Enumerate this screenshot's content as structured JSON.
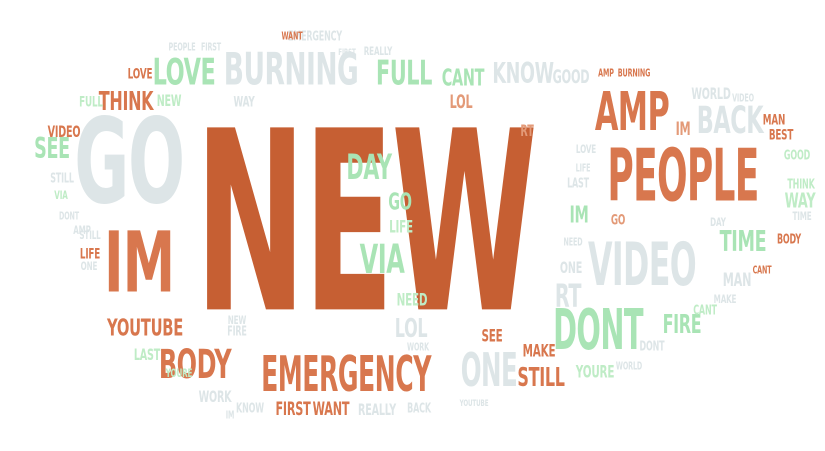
{
  "palette": {
    "orange_dark": "#c65f33",
    "orange": "#d8774e",
    "orange_light": "#e39a78",
    "mint": "#bfecc6",
    "mint_strong": "#a9e4b5",
    "gray": "#dde5e7",
    "gray_light": "#e8edef"
  },
  "words": [
    {
      "text": "NEW"
    },
    {
      "text": "GO"
    },
    {
      "text": "IM"
    },
    {
      "text": "PEOPLE"
    },
    {
      "text": "EMERGENCY"
    },
    {
      "text": "BURNING"
    },
    {
      "text": "AMP"
    },
    {
      "text": "VIDEO"
    },
    {
      "text": "BODY"
    },
    {
      "text": "LOVE"
    },
    {
      "text": "FULL"
    },
    {
      "text": "DONT"
    },
    {
      "text": "VIA"
    },
    {
      "text": "DAY"
    },
    {
      "text": "ONE"
    },
    {
      "text": "BACK"
    },
    {
      "text": "TIME"
    },
    {
      "text": "THINK"
    },
    {
      "text": "SEE"
    },
    {
      "text": "YOUTUBE"
    },
    {
      "text": "CANT"
    },
    {
      "text": "KNOW"
    },
    {
      "text": "FIRST"
    },
    {
      "text": "WANT"
    },
    {
      "text": "STILL"
    },
    {
      "text": "MAKE"
    },
    {
      "text": "LOL"
    },
    {
      "text": "FIRE"
    },
    {
      "text": "NEED"
    },
    {
      "text": "LIFE"
    },
    {
      "text": "GO"
    },
    {
      "text": "IM"
    },
    {
      "text": "RT"
    },
    {
      "text": "RT"
    },
    {
      "text": "LAST"
    },
    {
      "text": "IM"
    },
    {
      "text": "REALLY"
    },
    {
      "text": "GOOD"
    },
    {
      "text": "VIDEO"
    },
    {
      "text": "NEW"
    },
    {
      "text": "FULL"
    },
    {
      "text": "WORLD"
    },
    {
      "text": "MAN"
    },
    {
      "text": "BEST"
    },
    {
      "text": "WAY"
    },
    {
      "text": "LOVE"
    },
    {
      "text": "WAY"
    },
    {
      "text": "ONE"
    },
    {
      "text": "SEE"
    },
    {
      "text": "YOURE"
    },
    {
      "text": "WORK"
    },
    {
      "text": "KNOW"
    },
    {
      "text": "REALLY"
    },
    {
      "text": "BACK"
    },
    {
      "text": "LOL"
    },
    {
      "text": "GO"
    },
    {
      "text": "PEOPLE"
    },
    {
      "text": "EMERGENCY"
    },
    {
      "text": "FIRE"
    },
    {
      "text": "NEW"
    },
    {
      "text": "YOURE"
    },
    {
      "text": "STILL"
    },
    {
      "text": "LIFE"
    },
    {
      "text": "DAY"
    },
    {
      "text": "GOOD"
    },
    {
      "text": "THINK"
    },
    {
      "text": "MAN"
    },
    {
      "text": "CANT"
    },
    {
      "text": "BODY"
    },
    {
      "text": "MAKE"
    },
    {
      "text": "LAST"
    },
    {
      "text": "DONT"
    },
    {
      "text": "WANT"
    },
    {
      "text": "FIRST"
    },
    {
      "text": "TIME"
    },
    {
      "text": "VIA"
    },
    {
      "text": "AMP"
    },
    {
      "text": "BURNING"
    },
    {
      "text": "NEED"
    },
    {
      "text": "WORK"
    },
    {
      "text": "YOUTUBE"
    },
    {
      "text": "WORLD"
    },
    {
      "text": "VIDEO"
    },
    {
      "text": "ONE"
    },
    {
      "text": "STILL"
    },
    {
      "text": "AMP"
    },
    {
      "text": "DONT"
    },
    {
      "text": "IM"
    },
    {
      "text": "FIRST"
    },
    {
      "text": "LIFE"
    },
    {
      "text": "CANT"
    },
    {
      "text": "LOVE"
    }
  ]
}
